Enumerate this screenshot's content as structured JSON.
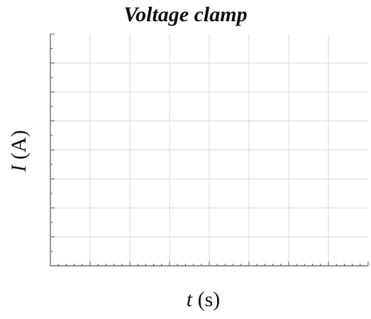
{
  "chart_data": {
    "type": "line",
    "title": "Voltage clamp",
    "xlabel": {
      "variable": "t",
      "unit": "(s)"
    },
    "ylabel": {
      "variable": "I",
      "unit": "(A)"
    },
    "series": [],
    "grid": true,
    "legend": "none",
    "x_major_ticks": 8,
    "x_minor_per_major": 5,
    "y_major_ticks": 8,
    "y_minor_per_major": 2,
    "colors": {
      "grid": "#d9d9d9",
      "axis": "#555555",
      "text": "#111111"
    }
  }
}
